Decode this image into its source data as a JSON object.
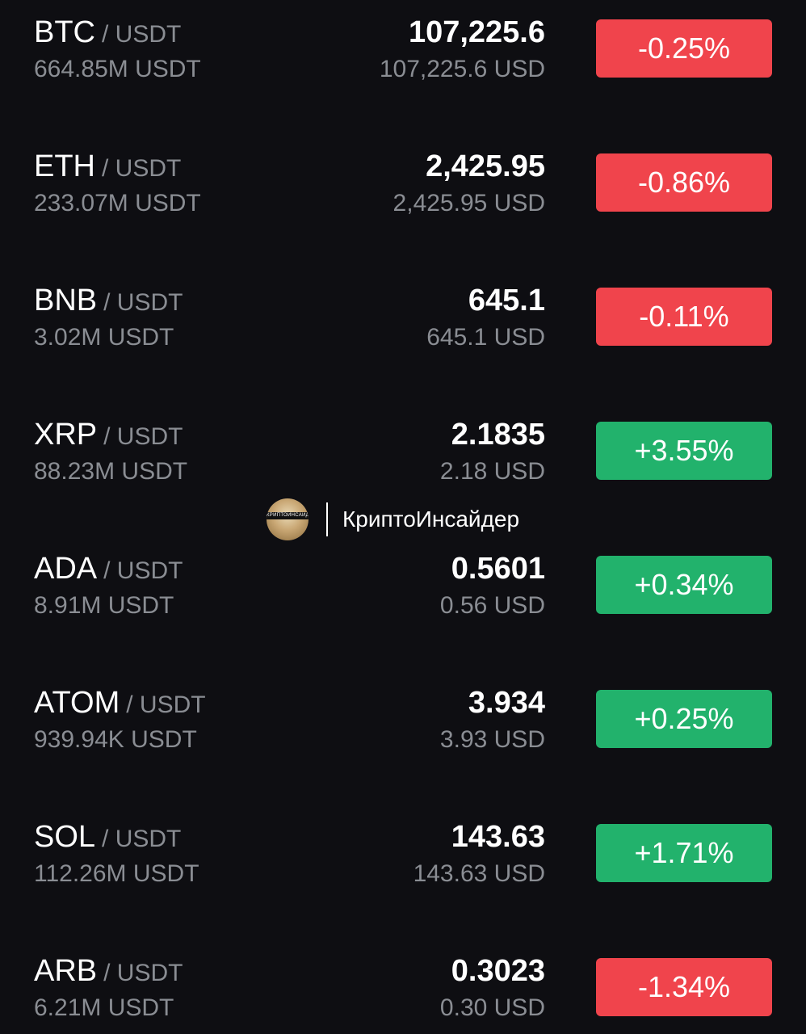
{
  "watermark": {
    "text": "КриптоИнсайдер",
    "avatar_band": "КРИПТОИНСАЙДЕР",
    "avatar_icon": "portrait-avatar-icon"
  },
  "pairs": [
    {
      "base": "BTC",
      "quote": "/ USDT",
      "volume": "664.85M USDT",
      "price": "107,225.6",
      "fiat": "107,225.6 USD",
      "change": "-0.25%",
      "direction": "down"
    },
    {
      "base": "ETH",
      "quote": "/ USDT",
      "volume": "233.07M USDT",
      "price": "2,425.95",
      "fiat": "2,425.95 USD",
      "change": "-0.86%",
      "direction": "down"
    },
    {
      "base": "BNB",
      "quote": "/ USDT",
      "volume": "3.02M USDT",
      "price": "645.1",
      "fiat": "645.1 USD",
      "change": "-0.11%",
      "direction": "down"
    },
    {
      "base": "XRP",
      "quote": "/ USDT",
      "volume": "88.23M USDT",
      "price": "2.1835",
      "fiat": "2.18 USD",
      "change": "+3.55%",
      "direction": "up"
    },
    {
      "base": "ADA",
      "quote": "/ USDT",
      "volume": "8.91M USDT",
      "price": "0.5601",
      "fiat": "0.56 USD",
      "change": "+0.34%",
      "direction": "up"
    },
    {
      "base": "ATOM",
      "quote": "/ USDT",
      "volume": "939.94K USDT",
      "price": "3.934",
      "fiat": "3.93 USD",
      "change": "+0.25%",
      "direction": "up"
    },
    {
      "base": "SOL",
      "quote": "/ USDT",
      "volume": "112.26M USDT",
      "price": "143.63",
      "fiat": "143.63 USD",
      "change": "+1.71%",
      "direction": "up"
    },
    {
      "base": "ARB",
      "quote": "/ USDT",
      "volume": "6.21M USDT",
      "price": "0.3023",
      "fiat": "0.30 USD",
      "change": "-1.34%",
      "direction": "down"
    }
  ],
  "colors": {
    "background": "#0e0e12",
    "negative": "#f0444c",
    "positive": "#22b26c",
    "muted_text": "#8a8d93"
  }
}
